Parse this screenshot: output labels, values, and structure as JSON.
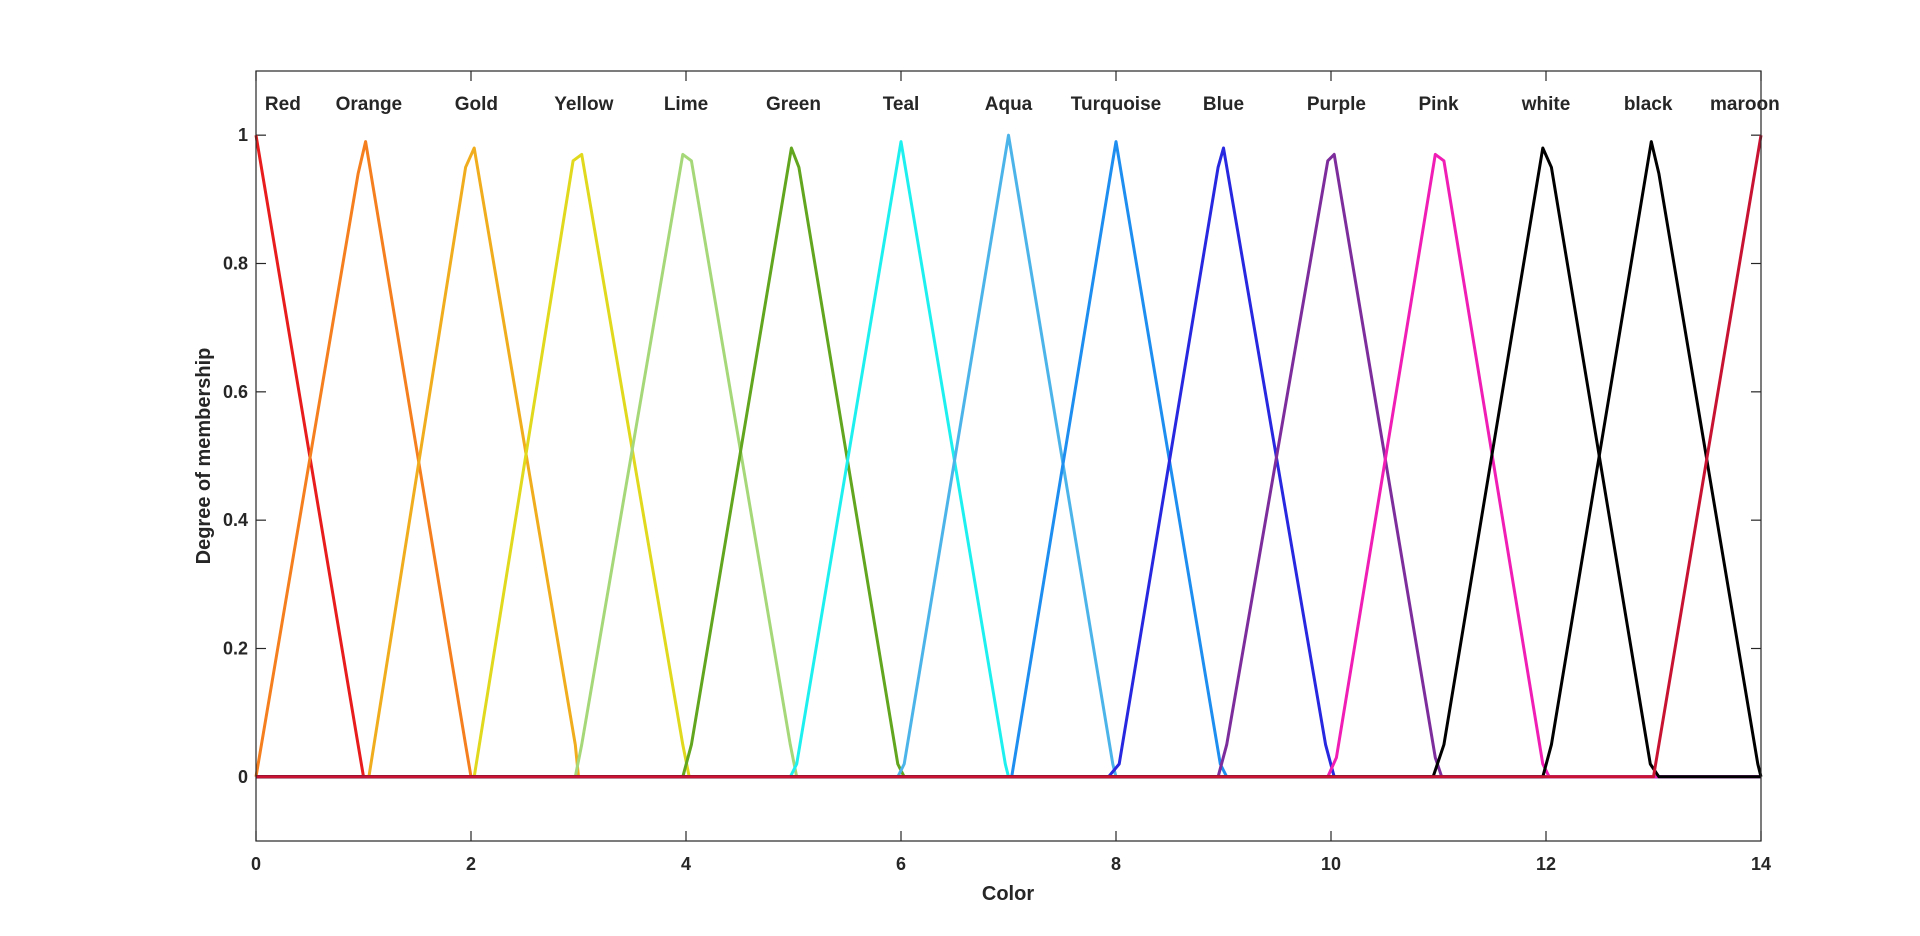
{
  "chart_data": {
    "type": "line",
    "title": "",
    "xlabel": "Color",
    "ylabel": "Degree of membership",
    "xlim": [
      0,
      14
    ],
    "ylim": [
      -0.1,
      1.1
    ],
    "xticks": [
      0,
      2,
      4,
      6,
      8,
      10,
      12,
      14
    ],
    "xtick_labels": [
      "0",
      "2",
      "4",
      "6",
      "8",
      "10",
      "12",
      "14"
    ],
    "yticks": [
      0,
      0.2,
      0.4,
      0.6,
      0.8,
      1
    ],
    "ytick_labels": [
      "0",
      "0.2",
      "0.4",
      "0.6",
      "0.8",
      "1"
    ],
    "grid": false,
    "series": [
      {
        "name": "Red",
        "label_x": 0.25,
        "color": "#e81c1c",
        "x": [
          0,
          0.95,
          1,
          14
        ],
        "y": [
          1,
          0.05,
          0,
          0
        ]
      },
      {
        "name": "Orange",
        "label_x": 1.05,
        "color": "#f57f1e",
        "x": [
          0,
          0.95,
          1.02,
          1.95,
          2,
          14
        ],
        "y": [
          0,
          0.94,
          0.99,
          0.05,
          0,
          0
        ]
      },
      {
        "name": "Gold",
        "label_x": 2.05,
        "color": "#f0ad1e",
        "x": [
          0,
          0.97,
          1.05,
          1.95,
          2.03,
          2.97,
          3,
          14
        ],
        "y": [
          0,
          0,
          0,
          0.95,
          0.98,
          0.05,
          0,
          0
        ]
      },
      {
        "name": "Yellow",
        "label_x": 3.05,
        "color": "#e0d91e",
        "x": [
          0,
          1.97,
          2.03,
          2.95,
          3.03,
          3.97,
          4.03,
          14
        ],
        "y": [
          0,
          0,
          0,
          0.96,
          0.97,
          0.05,
          0,
          0
        ]
      },
      {
        "name": "Lime",
        "label_x": 4.0,
        "color": "#a6d87a",
        "x": [
          0,
          2.97,
          3.03,
          3.97,
          4.05,
          4.97,
          5.03,
          14
        ],
        "y": [
          0,
          0,
          0.05,
          0.97,
          0.96,
          0.05,
          0,
          0
        ]
      },
      {
        "name": "Green",
        "label_x": 5.0,
        "color": "#62a51e",
        "x": [
          0,
          3.97,
          4.05,
          4.98,
          5.05,
          5.97,
          6.03,
          14
        ],
        "y": [
          0,
          0,
          0.05,
          0.98,
          0.95,
          0.02,
          0,
          0
        ]
      },
      {
        "name": "Teal",
        "label_x": 6.0,
        "color": "#1ef0f0",
        "x": [
          0,
          4.97,
          5.03,
          6.0,
          6.05,
          6.97,
          7.0,
          14
        ],
        "y": [
          0,
          0,
          0.02,
          0.99,
          0.94,
          0.02,
          0,
          0
        ]
      },
      {
        "name": "Aqua",
        "label_x": 7.0,
        "color": "#4db4ea",
        "x": [
          0,
          5.97,
          6.03,
          7.0,
          7.97,
          8.0,
          14
        ],
        "y": [
          0,
          0,
          0.02,
          1,
          0.02,
          0,
          0
        ]
      },
      {
        "name": "Turquoise",
        "label_x": 8.0,
        "color": "#1e8ef0",
        "x": [
          0,
          6.97,
          7.03,
          7.95,
          8.0,
          8.97,
          9.03,
          14
        ],
        "y": [
          0,
          0,
          0.0,
          0.94,
          0.99,
          0.02,
          0,
          0
        ]
      },
      {
        "name": "Blue",
        "label_x": 9.0,
        "color": "#2828e0",
        "x": [
          0,
          7.93,
          8.03,
          8.95,
          9.0,
          9.95,
          10.03,
          14
        ],
        "y": [
          0,
          0,
          0.02,
          0.95,
          0.98,
          0.05,
          0,
          0
        ]
      },
      {
        "name": "Purple",
        "label_x": 10.05,
        "color": "#7d2e9c",
        "x": [
          0,
          8.95,
          9.03,
          9.97,
          10.03,
          10.97,
          11.03,
          14
        ],
        "y": [
          0,
          0,
          0.05,
          0.96,
          0.97,
          0.03,
          0,
          0
        ]
      },
      {
        "name": "Pink",
        "label_x": 11.0,
        "color": "#f01eb4",
        "x": [
          0,
          9.97,
          10.05,
          10.97,
          11.05,
          11.97,
          12.03,
          14
        ],
        "y": [
          0,
          0,
          0.03,
          0.97,
          0.96,
          0.02,
          0,
          0
        ]
      },
      {
        "name": "white",
        "label_x": 12.0,
        "color": "#000000",
        "x": [
          0,
          10.95,
          11.05,
          11.97,
          12.05,
          12.97,
          13.05,
          14
        ],
        "y": [
          0,
          0,
          0.05,
          0.98,
          0.95,
          0.02,
          0,
          0
        ]
      },
      {
        "name": "black",
        "label_x": 12.95,
        "color": "#000000",
        "x": [
          0,
          11.97,
          12.05,
          12.98,
          13.05,
          13.97,
          14
        ],
        "y": [
          0,
          0,
          0.05,
          0.99,
          0.94,
          0.02,
          0
        ]
      },
      {
        "name": "maroon",
        "label_x": 13.85,
        "color": "#c81432",
        "x": [
          0,
          12.97,
          13.0,
          14
        ],
        "y": [
          0,
          0,
          0,
          1
        ]
      }
    ]
  }
}
